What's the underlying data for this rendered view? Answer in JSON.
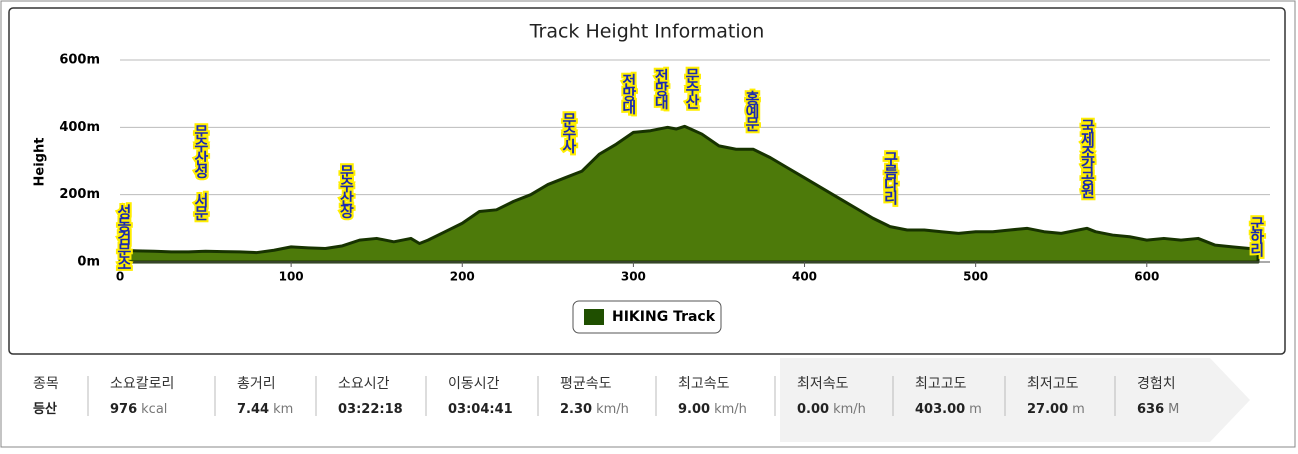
{
  "chart_data": {
    "type": "area",
    "title": "Track Height Information",
    "y_label": "Height",
    "x": [
      0,
      10,
      20,
      30,
      40,
      50,
      60,
      70,
      80,
      90,
      100,
      110,
      120,
      130,
      140,
      150,
      160,
      170,
      175,
      180,
      190,
      200,
      210,
      220,
      230,
      240,
      250,
      260,
      270,
      280,
      290,
      300,
      310,
      320,
      325,
      330,
      340,
      350,
      360,
      370,
      380,
      390,
      400,
      410,
      420,
      430,
      440,
      450,
      460,
      470,
      480,
      490,
      500,
      510,
      520,
      530,
      540,
      550,
      560,
      565,
      570,
      580,
      590,
      600,
      610,
      620,
      630,
      640,
      650,
      660,
      665
    ],
    "series": [
      {
        "name": "HIKING Track",
        "color": "#4d7a0a",
        "values": [
          35,
          33,
          32,
          30,
          30,
          32,
          31,
          30,
          28,
          35,
          45,
          42,
          40,
          48,
          65,
          70,
          60,
          70,
          55,
          65,
          90,
          115,
          150,
          155,
          180,
          200,
          230,
          250,
          270,
          320,
          350,
          385,
          390,
          400,
          395,
          403,
          380,
          345,
          335,
          335,
          310,
          280,
          250,
          220,
          190,
          160,
          130,
          105,
          95,
          95,
          90,
          85,
          90,
          90,
          95,
          100,
          90,
          85,
          95,
          100,
          90,
          80,
          75,
          65,
          70,
          65,
          70,
          50,
          45,
          40,
          45
        ]
      }
    ],
    "xlim": [
      0,
      672
    ],
    "xticks": [
      0,
      100,
      200,
      300,
      400,
      500,
      600
    ],
    "ylim": [
      0,
      600
    ],
    "yticks": [
      {
        "value": 0,
        "label": "0m"
      },
      {
        "value": 200,
        "label": "200m"
      },
      {
        "value": 400,
        "label": "400m"
      },
      {
        "value": 600,
        "label": "600m"
      }
    ],
    "grid": true,
    "annotations": [
      {
        "text": "성동검문소",
        "x": 2
      },
      {
        "text": "문수산성 서문",
        "x": 47
      },
      {
        "text": "문수산장",
        "x": 132
      },
      {
        "text": "문수사",
        "x": 262
      },
      {
        "text": "전망대",
        "x": 297
      },
      {
        "text": "전망대",
        "x": 316
      },
      {
        "text": "문수산",
        "x": 334
      },
      {
        "text": "홍예문",
        "x": 369
      },
      {
        "text": "구름다리",
        "x": 450
      },
      {
        "text": "국제조각공원",
        "x": 565
      },
      {
        "text": "군하리",
        "x": 664
      }
    ]
  },
  "stats": [
    {
      "label": "종목",
      "value": "등산"
    },
    {
      "label": "소요칼로리",
      "value": "976",
      "unit": "kcal"
    },
    {
      "label": "총거리",
      "value": "7.44",
      "unit": "km"
    },
    {
      "label": "소요시간",
      "value": "03:22:18"
    },
    {
      "label": "이동시간",
      "value": "03:04:41"
    },
    {
      "label": "평균속도",
      "value": "2.30",
      "unit": "km/h"
    },
    {
      "label": "최고속도",
      "value": "9.00",
      "unit": "km/h"
    },
    {
      "label": "최저속도",
      "value": "0.00",
      "unit": "km/h"
    },
    {
      "label": "최고고도",
      "value": "403.00",
      "unit": "m"
    },
    {
      "label": "최저고도",
      "value": "27.00",
      "unit": "m"
    },
    {
      "label": "경험치",
      "value": "636",
      "unit": "M"
    }
  ]
}
